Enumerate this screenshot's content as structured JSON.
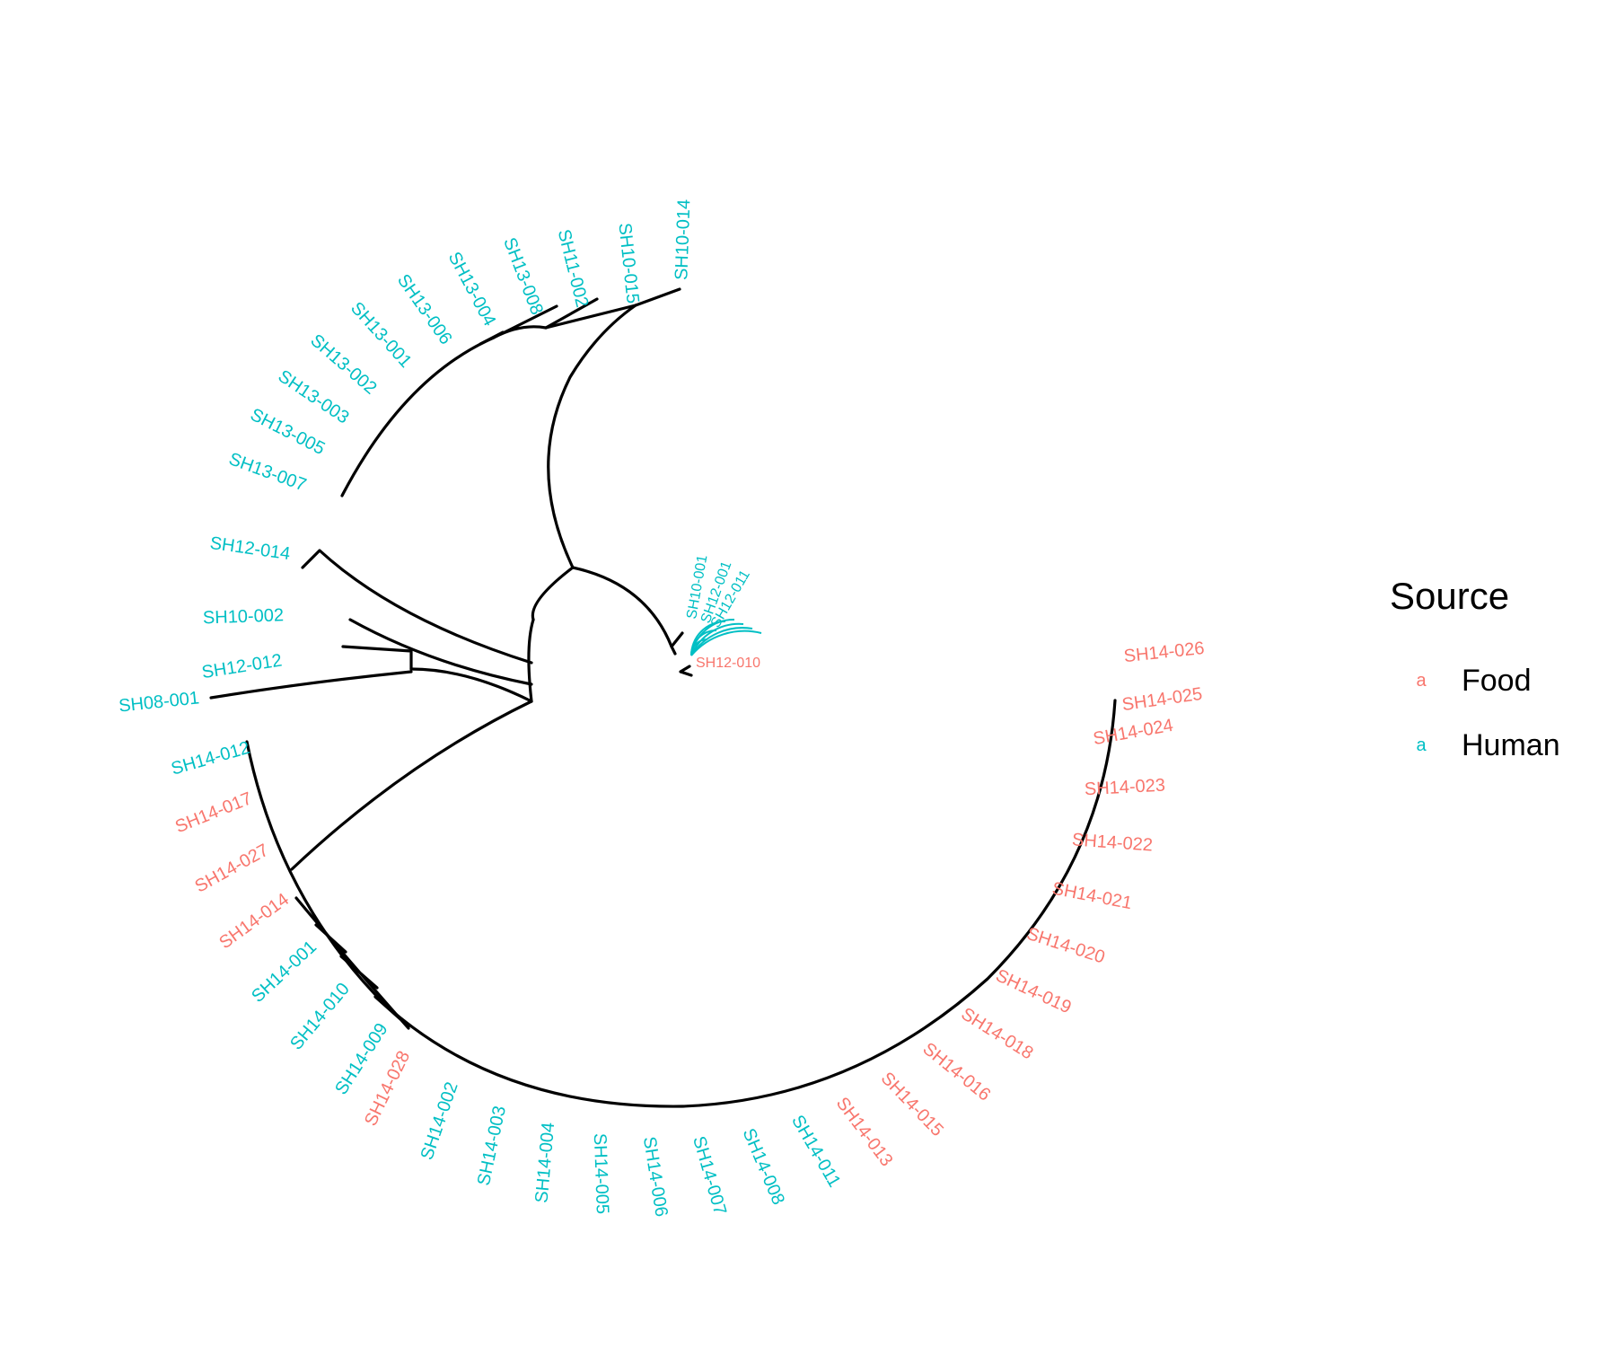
{
  "legend": {
    "title": "Source",
    "key_glyph": "a",
    "items": [
      {
        "label": "Food",
        "color": "#F8766D"
      },
      {
        "label": "Human",
        "color": "#00BFC4"
      }
    ]
  },
  "colors": {
    "Food": "#F8766D",
    "Human": "#00BFC4",
    "branch": "#000000"
  },
  "tips": [
    {
      "label": "SH10-014",
      "source": "Human"
    },
    {
      "label": "SH10-015",
      "source": "Human"
    },
    {
      "label": "SH11-002",
      "source": "Human"
    },
    {
      "label": "SH13-008",
      "source": "Human"
    },
    {
      "label": "SH13-004",
      "source": "Human"
    },
    {
      "label": "SH13-006",
      "source": "Human"
    },
    {
      "label": "SH13-001",
      "source": "Human"
    },
    {
      "label": "SH13-002",
      "source": "Human"
    },
    {
      "label": "SH13-003",
      "source": "Human"
    },
    {
      "label": "SH13-005",
      "source": "Human"
    },
    {
      "label": "SH13-007",
      "source": "Human"
    },
    {
      "label": "SH12-014",
      "source": "Human"
    },
    {
      "label": "SH10-002",
      "source": "Human"
    },
    {
      "label": "SH12-012",
      "source": "Human"
    },
    {
      "label": "SH08-001",
      "source": "Human"
    },
    {
      "label": "SH14-012",
      "source": "Human"
    },
    {
      "label": "SH14-017",
      "source": "Food"
    },
    {
      "label": "SH14-027",
      "source": "Food"
    },
    {
      "label": "SH14-014",
      "source": "Food"
    },
    {
      "label": "SH14-001",
      "source": "Human"
    },
    {
      "label": "SH14-010",
      "source": "Human"
    },
    {
      "label": "SH14-009",
      "source": "Human"
    },
    {
      "label": "SH14-028",
      "source": "Food"
    },
    {
      "label": "SH14-002",
      "source": "Human"
    },
    {
      "label": "SH14-003",
      "source": "Human"
    },
    {
      "label": "SH14-004",
      "source": "Human"
    },
    {
      "label": "SH14-005",
      "source": "Human"
    },
    {
      "label": "SH14-006",
      "source": "Human"
    },
    {
      "label": "SH14-007",
      "source": "Human"
    },
    {
      "label": "SH14-008",
      "source": "Human"
    },
    {
      "label": "SH14-011",
      "source": "Human"
    },
    {
      "label": "SH14-013",
      "source": "Food"
    },
    {
      "label": "SH14-015",
      "source": "Food"
    },
    {
      "label": "SH14-016",
      "source": "Food"
    },
    {
      "label": "SH14-018",
      "source": "Food"
    },
    {
      "label": "SH14-019",
      "source": "Food"
    },
    {
      "label": "SH14-020",
      "source": "Food"
    },
    {
      "label": "SH14-021",
      "source": "Food"
    },
    {
      "label": "SH14-022",
      "source": "Food"
    },
    {
      "label": "SH14-023",
      "source": "Food"
    },
    {
      "label": "SH14-024",
      "source": "Food"
    },
    {
      "label": "SH14-025",
      "source": "Food"
    },
    {
      "label": "SH14-026",
      "source": "Food"
    }
  ],
  "center_cluster_labels": [
    {
      "label": "SH10-001",
      "source": "Human"
    },
    {
      "label": "SH12-001",
      "source": "Human"
    },
    {
      "label": "SH12-011",
      "source": "Human"
    },
    {
      "label": "SH12-010",
      "source": "Food"
    }
  ]
}
